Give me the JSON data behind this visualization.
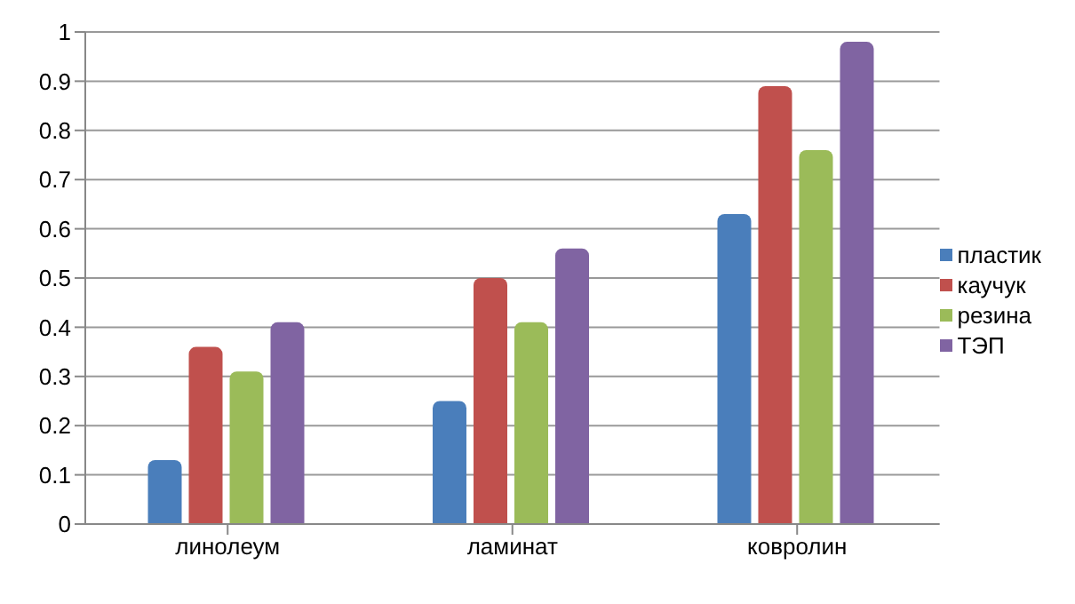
{
  "chart_data": {
    "type": "bar",
    "categories": [
      "линолеум",
      "ламинат",
      "ковролин"
    ],
    "series": [
      {
        "name": "пластик",
        "color": "#4a7ebb",
        "values": [
          0.13,
          0.25,
          0.63
        ]
      },
      {
        "name": "каучук",
        "color": "#c0504d",
        "values": [
          0.36,
          0.5,
          0.89
        ]
      },
      {
        "name": "резина",
        "color": "#9bbb59",
        "values": [
          0.31,
          0.41,
          0.76
        ]
      },
      {
        "name": "ТЭП",
        "color": "#8064a2",
        "values": [
          0.41,
          0.56,
          0.98
        ]
      }
    ],
    "ylim": [
      0,
      1
    ],
    "yticks": [
      0,
      0.1,
      0.2,
      0.3,
      0.4,
      0.5,
      0.6,
      0.7,
      0.8,
      0.9,
      1
    ],
    "grid": "y",
    "legend": "right"
  }
}
